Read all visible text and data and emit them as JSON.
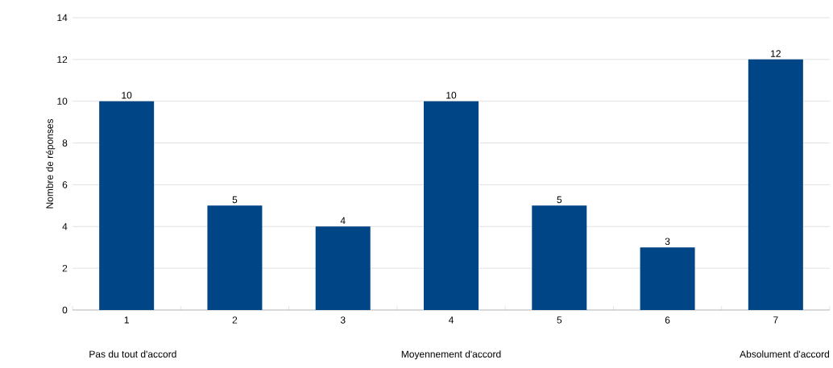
{
  "chart_data": {
    "type": "bar",
    "ylabel": "Nombre de réponses",
    "categories": [
      "1",
      "2",
      "3",
      "4",
      "5",
      "6",
      "7"
    ],
    "values": [
      10,
      5,
      4,
      10,
      5,
      3,
      12
    ],
    "color": "#004586",
    "ylim": [
      0,
      14
    ],
    "yticks": [
      0,
      2,
      4,
      6,
      8,
      10,
      12,
      14
    ],
    "grid": "y",
    "data_labels": true,
    "annotations": [
      "Pas du tout d'accord",
      "Moyennement d'accord",
      "Absolument d'accord"
    ]
  }
}
